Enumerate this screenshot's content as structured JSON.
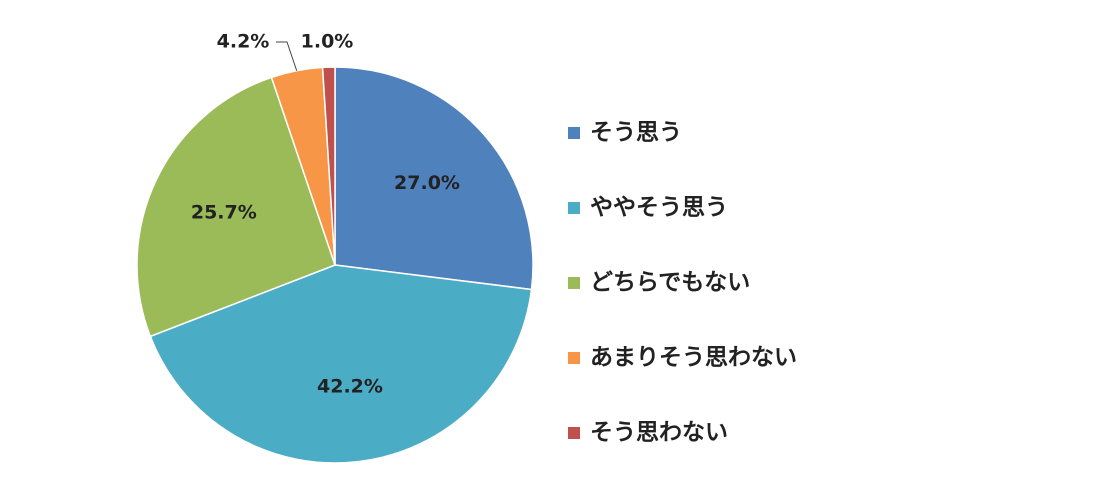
{
  "chart_data": {
    "type": "pie",
    "categories": [
      "そう思う",
      "ややそう思う",
      "どちらでもない",
      "あまりそう思わない",
      "そう思わない"
    ],
    "values": [
      27.0,
      42.2,
      25.7,
      4.2,
      1.0
    ],
    "value_labels": [
      "27.0%",
      "42.2%",
      "25.7%",
      "4.2%",
      "1.0%"
    ],
    "colors": [
      "#4f81bd",
      "#4bacc6",
      "#9bbb59",
      "#f79646",
      "#c0504d"
    ],
    "legend": "right"
  }
}
